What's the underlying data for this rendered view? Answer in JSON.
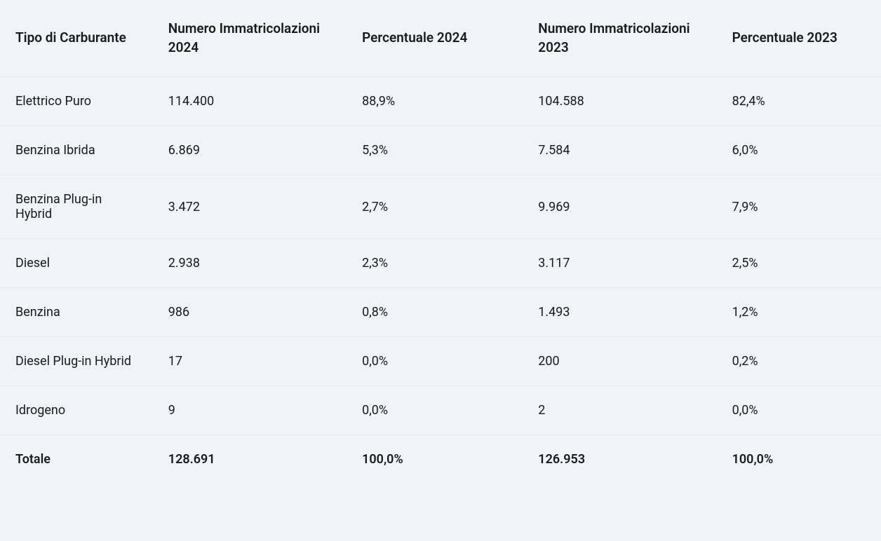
{
  "table": {
    "columns": [
      "Tipo di Carburante",
      "Numero Immatricolazioni 2024",
      "Percentuale 2024",
      "Numero Immatricolazioni 2023",
      "Percentuale 2023"
    ],
    "rows": [
      [
        "Elettrico Puro",
        "114.400",
        "88,9%",
        "104.588",
        "82,4%"
      ],
      [
        "Benzina Ibrida",
        "6.869",
        "5,3%",
        "7.584",
        "6,0%"
      ],
      [
        "Benzina Plug-in Hybrid",
        "3.472",
        "2,7%",
        "9.969",
        "7,9%"
      ],
      [
        "Diesel",
        "2.938",
        "2,3%",
        "3.117",
        "2,5%"
      ],
      [
        "Benzina",
        "986",
        "0,8%",
        "1.493",
        "1,2%"
      ],
      [
        "Diesel Plug-in Hybrid",
        "17",
        "0,0%",
        "200",
        "0,2%"
      ],
      [
        "Idrogeno",
        "9",
        "0,0%",
        "2",
        "0,0%"
      ]
    ],
    "total_row": [
      "Totale",
      "128.691",
      "100,0%",
      "126.953",
      "100,0%"
    ],
    "styling": {
      "background_color": "#f0f3f7",
      "border_color": "#e5e9ef",
      "text_color": "#1a1a1a",
      "header_fontsize": 19,
      "body_fontsize": 18,
      "header_fontweight": 600,
      "total_fontweight": 600
    }
  }
}
